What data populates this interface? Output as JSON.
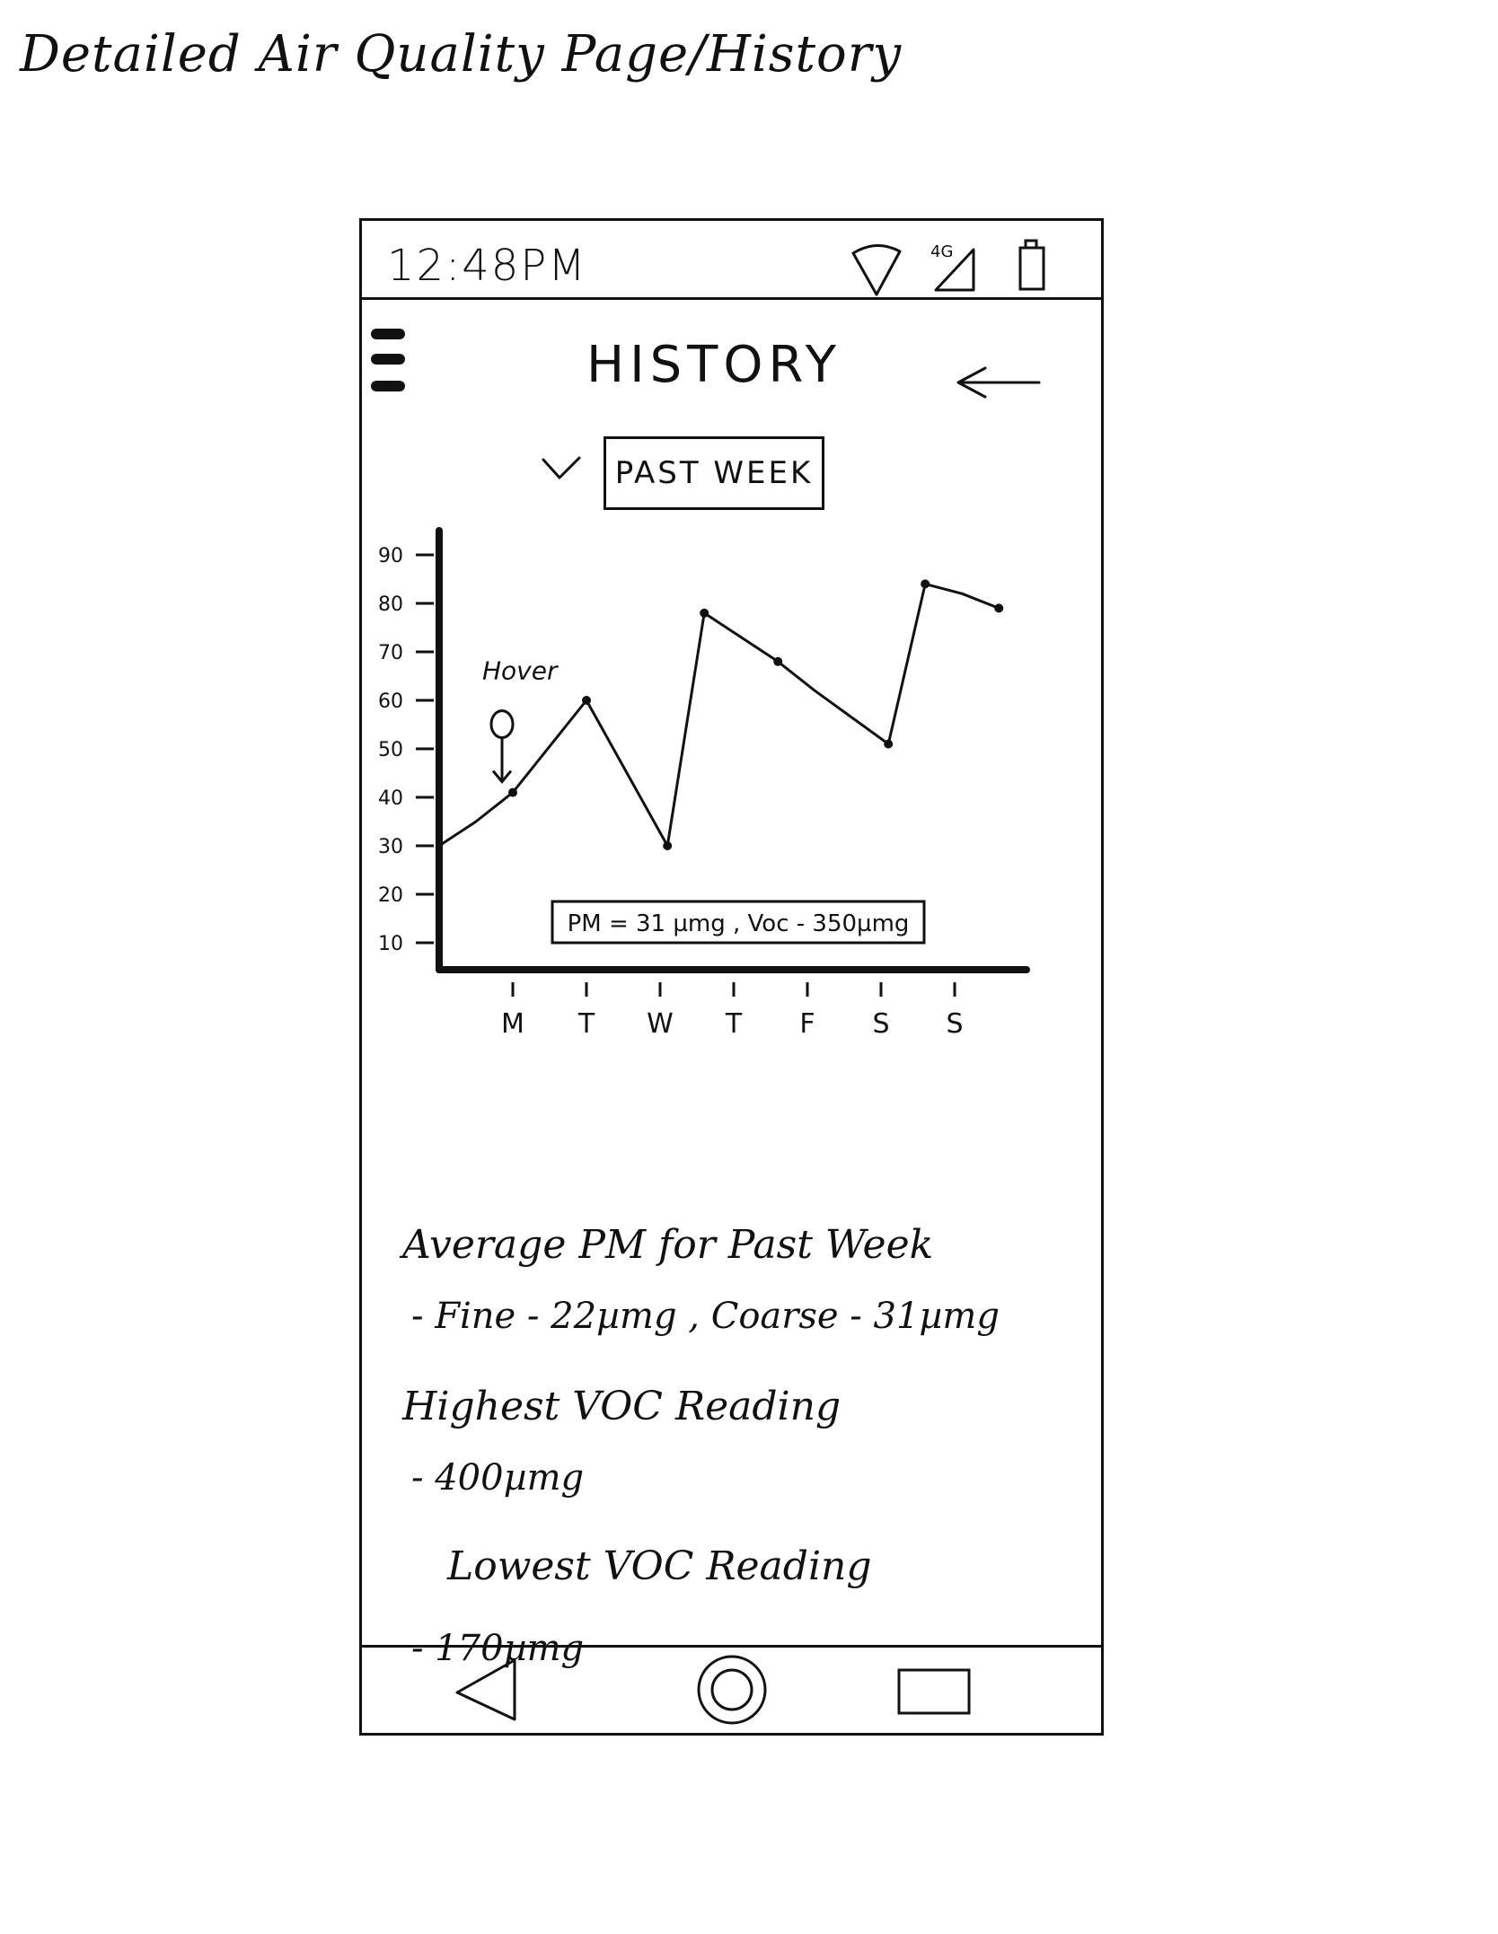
{
  "sketch_title": "Detailed Air Quality Page/History",
  "status_bar": {
    "time": "12:48PM",
    "network_label": "4G",
    "icons": [
      "wifi-icon",
      "cellular-signal-icon",
      "battery-icon"
    ]
  },
  "header": {
    "title": "HISTORY",
    "menu_icon": "hamburger-menu-icon",
    "back_icon": "back-arrow-icon"
  },
  "range_selector": {
    "selected": "PAST WEEK",
    "chevron_icon": "chevron-down-icon"
  },
  "chart_data": {
    "type": "line",
    "categories": [
      "M",
      "T",
      "W",
      "T",
      "F",
      "S",
      "S"
    ],
    "y_ticks": [
      "10",
      "20",
      "30",
      "40",
      "50",
      "60",
      "70",
      "80",
      "90"
    ],
    "ylim": [
      10,
      90
    ],
    "points": [
      {
        "x": 0.0,
        "y": 30
      },
      {
        "x": 0.5,
        "y": 35
      },
      {
        "x": 1.0,
        "y": 41
      },
      {
        "x": 2.0,
        "y": 60
      },
      {
        "x": 3.1,
        "y": 30
      },
      {
        "x": 3.6,
        "y": 78
      },
      {
        "x": 4.6,
        "y": 68
      },
      {
        "x": 5.1,
        "y": 62
      },
      {
        "x": 6.1,
        "y": 51
      },
      {
        "x": 6.6,
        "y": 84
      },
      {
        "x": 7.1,
        "y": 82
      },
      {
        "x": 7.6,
        "y": 79
      }
    ],
    "marked_points": [
      2,
      3,
      4,
      5,
      6,
      8,
      9,
      11
    ],
    "hover": {
      "label": "Hover",
      "point_index": 2
    },
    "tooltip": "PM = 31 µmg , Voc - 350µmg",
    "grid": false
  },
  "stats": {
    "avg_heading": "Average PM for Past Week",
    "avg_value": "- Fine - 22µmg , Coarse - 31µmg",
    "highest_heading": "Highest VOC Reading",
    "highest_value": "- 400µmg",
    "lowest_heading": "Lowest VOC Reading",
    "lowest_value": "- 170µmg"
  },
  "nav_bar": {
    "back": "nav-back-icon",
    "home": "nav-home-icon",
    "recents": "nav-recents-icon"
  }
}
